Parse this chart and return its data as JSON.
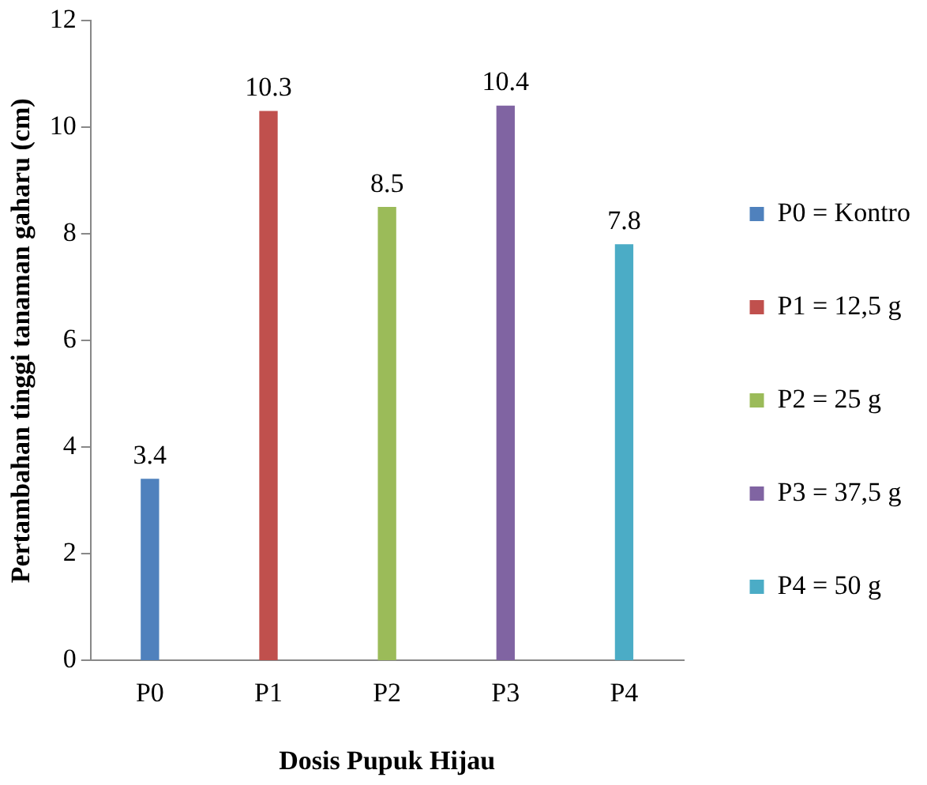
{
  "chart_data": {
    "type": "bar",
    "xlabel": "Dosis Pupuk Hijau",
    "ylabel": "Pertambahan tinggi tanaman gaharu (cm)",
    "categories": [
      "P0",
      "P1",
      "P2",
      "P3",
      "P4"
    ],
    "series": [
      {
        "name": "P0 = Kontro",
        "color": "#4f81bd",
        "values": [
          3.4,
          null,
          null,
          null,
          null
        ]
      },
      {
        "name": "P1 = 12,5 g",
        "color": "#c0504d",
        "values": [
          null,
          10.3,
          null,
          null,
          null
        ]
      },
      {
        "name": "P2 = 25 g",
        "color": "#9bbb59",
        "values": [
          null,
          null,
          8.5,
          null,
          null
        ]
      },
      {
        "name": "P3 = 37,5 g",
        "color": "#8064a2",
        "values": [
          null,
          null,
          null,
          10.4,
          null
        ]
      },
      {
        "name": "P4 = 50 g",
        "color": "#4bacc6",
        "values": [
          null,
          null,
          null,
          null,
          7.8
        ]
      }
    ],
    "ylim": [
      0,
      12
    ],
    "yticks": [
      0,
      2,
      4,
      6,
      8,
      10,
      12
    ],
    "grid": false,
    "legend": "right",
    "data_labels": true
  }
}
